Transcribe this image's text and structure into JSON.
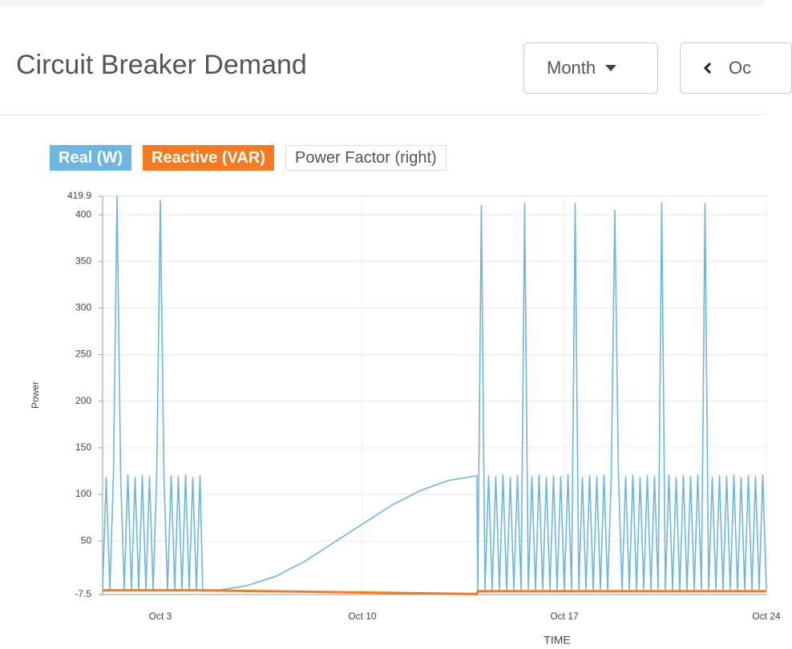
{
  "header": {
    "title": "Circuit Breaker Demand",
    "period": "Month",
    "nav": "Oc"
  },
  "chart_data": {
    "type": "line",
    "ylabel": "Power",
    "xlabel": "TIME",
    "xlim": [
      1,
      24
    ],
    "xticks": [
      {
        "value": 3,
        "label": "Oct 3"
      },
      {
        "value": 10,
        "label": "Oct 10"
      },
      {
        "value": 17,
        "label": "Oct 17"
      },
      {
        "value": 24,
        "label": "Oct 24"
      }
    ],
    "ylim": [
      -7.5,
      419.9
    ],
    "yticks": [
      -7.5,
      50,
      100,
      150,
      200,
      250,
      300,
      350,
      400,
      419.9
    ],
    "grid": true,
    "series": [
      {
        "name": "Real (W)",
        "color": "#6cb6e0",
        "x": [
          1,
          1.125,
          1.25,
          1.375,
          1.5,
          1.625,
          1.75,
          1.875,
          2,
          2.125,
          2.25,
          2.375,
          2.5,
          2.625,
          2.75,
          2.875,
          3,
          3.125,
          3.25,
          3.375,
          3.5,
          3.625,
          3.75,
          3.875,
          4,
          4.125,
          4.25,
          4.375,
          4.47,
          5,
          6,
          7,
          8,
          9,
          10,
          11,
          12,
          13,
          13.97,
          14,
          14.125,
          14.25,
          14.375,
          14.5,
          14.625,
          14.75,
          14.875,
          15,
          15.125,
          15.25,
          15.375,
          15.5,
          15.625,
          15.75,
          15.875,
          16,
          16.125,
          16.25,
          16.375,
          16.5,
          16.625,
          16.75,
          16.875,
          17,
          17.125,
          17.25,
          17.375,
          17.5,
          17.625,
          17.75,
          17.875,
          18,
          18.125,
          18.25,
          18.375,
          18.5,
          18.625,
          18.75,
          18.875,
          19,
          19.125,
          19.25,
          19.375,
          19.5,
          19.625,
          19.75,
          19.875,
          20,
          20.125,
          20.25,
          20.375,
          20.5,
          20.625,
          20.75,
          20.875,
          21,
          21.125,
          21.25,
          21.375,
          21.5,
          21.625,
          21.75,
          21.875,
          22,
          22.125,
          22.25,
          22.375,
          22.5,
          22.625,
          22.75,
          22.875,
          23,
          23.125,
          23.25,
          23.375,
          23.5,
          23.625,
          23.75,
          23.875,
          24
        ],
        "values": [
          -2,
          118,
          -3,
          120,
          419.9,
          119,
          -2,
          121,
          -3,
          118,
          -2,
          120,
          -3,
          119,
          -2,
          121,
          415,
          118,
          -3,
          120,
          -2,
          119,
          -3,
          121,
          -2,
          118,
          -3,
          120,
          -4,
          -3,
          2,
          12,
          28,
          48,
          68,
          88,
          104,
          115,
          120,
          -3,
          410,
          -2,
          120,
          -3,
          119,
          -2,
          121,
          -3,
          118,
          -2,
          120,
          -3,
          412,
          -2,
          119,
          -3,
          121,
          -2,
          118,
          -3,
          120,
          -2,
          119,
          -3,
          121,
          -2,
          412,
          -3,
          118,
          -2,
          120,
          -3,
          119,
          -2,
          121,
          -3,
          118,
          405,
          120,
          -3,
          119,
          -2,
          121,
          -3,
          118,
          -2,
          120,
          -3,
          119,
          -2,
          413,
          -3,
          121,
          -2,
          118,
          -3,
          120,
          -2,
          119,
          -3,
          121,
          -2,
          412,
          -3,
          118,
          -2,
          120,
          -3,
          119,
          -2,
          121,
          -3,
          118,
          -2,
          120,
          -3,
          119,
          -2,
          121,
          -3
        ]
      },
      {
        "name": "Reactive (VAR)",
        "color": "#f47b20",
        "x": [
          1,
          4.47,
          13.97,
          14,
          24
        ],
        "values": [
          -3,
          -3,
          -7,
          -4,
          -4
        ]
      },
      {
        "name": "Power Factor (right)",
        "color": "#ffffff",
        "visible": false
      }
    ]
  }
}
